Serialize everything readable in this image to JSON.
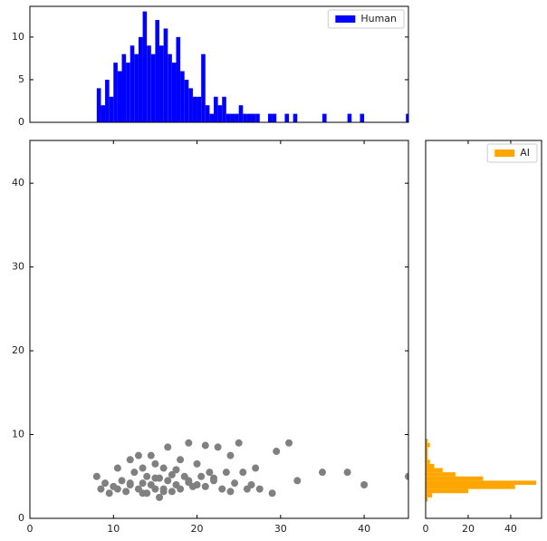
{
  "chart_data": [
    {
      "type": "histogram",
      "orientation": "vertical",
      "bins": [
        8.0,
        8.5,
        9.0,
        9.5,
        10.0,
        10.5,
        11.0,
        11.5,
        12.0,
        12.5,
        13.0,
        13.5,
        14.0,
        14.5,
        15.0,
        15.5,
        16.0,
        16.5,
        17.0,
        17.5,
        18.0,
        18.5,
        19.0,
        19.5,
        20.0,
        20.5,
        21.0,
        21.5,
        22.0,
        22.5,
        23.0,
        23.5,
        24.0,
        24.5,
        25.0,
        25.5,
        26.0,
        26.5,
        27.0,
        27.5,
        28.0,
        28.5,
        29.0,
        29.5,
        30.0,
        30.5,
        31.0,
        31.5,
        32.0,
        32.5,
        33.0,
        33.5,
        34.0,
        34.5,
        35.0,
        35.5,
        36.0,
        36.5,
        37.0,
        37.5,
        38.0,
        38.5,
        39.0,
        39.5,
        40.0,
        40.5,
        41.0,
        41.5,
        42.0,
        42.5,
        43.0,
        43.5,
        44.0,
        44.5,
        45.0,
        45.5
      ],
      "series": [
        {
          "name": "Human",
          "color": "#0000ff",
          "values": [
            4,
            2,
            5,
            3,
            7,
            6,
            8,
            7,
            9,
            8,
            10,
            13,
            9,
            8,
            12,
            9,
            11,
            8,
            7,
            10,
            6,
            5,
            4,
            3,
            3,
            8,
            2,
            1,
            3,
            2,
            3,
            1,
            1,
            1,
            2,
            1,
            1,
            1,
            1,
            0,
            0,
            1,
            1,
            0,
            0,
            1,
            0,
            1,
            0,
            0,
            0,
            0,
            0,
            0,
            1,
            0,
            0,
            0,
            0,
            0,
            1,
            0,
            0,
            1,
            0,
            0,
            0,
            0,
            0,
            0,
            0,
            0,
            0,
            0,
            1
          ]
        }
      ],
      "xlim": [
        0,
        45.3
      ],
      "ylim": [
        0,
        13.6
      ],
      "yticks": [
        0,
        5,
        10
      ],
      "legend": "upper right"
    },
    {
      "type": "scatter",
      "color": "#808080",
      "x": [
        8,
        8.5,
        9,
        9.5,
        10,
        10.5,
        11,
        11.5,
        12,
        12,
        12.5,
        13,
        13,
        13.5,
        13.5,
        14,
        14,
        14.5,
        14.5,
        15,
        15,
        15.5,
        15.5,
        16,
        16,
        16.5,
        16.5,
        17,
        17,
        17.5,
        18,
        18,
        18.5,
        19,
        19,
        19.5,
        20,
        20,
        20.5,
        21,
        21,
        21.5,
        22,
        22.5,
        23,
        23.5,
        24,
        24.5,
        25,
        25.5,
        26,
        26.5,
        27,
        27.5,
        29,
        29.5,
        31,
        32,
        35,
        38,
        40,
        45.3,
        10.5,
        12,
        13.5,
        15,
        16,
        17.5,
        19,
        22,
        24
      ],
      "y": [
        5,
        3.5,
        4.2,
        3,
        3.8,
        6,
        4.5,
        3.2,
        7,
        4,
        5.5,
        3.5,
        7.5,
        4.2,
        6,
        3,
        5,
        4,
        7.5,
        3.5,
        6.5,
        2.5,
        4.8,
        3.2,
        6,
        4.5,
        8.5,
        3.2,
        5.2,
        4,
        7,
        3.5,
        5,
        4.5,
        9,
        3.8,
        6.5,
        4,
        5,
        8.7,
        3.8,
        5.5,
        4.5,
        8.5,
        3.5,
        5.5,
        7.5,
        4.2,
        9,
        5.5,
        3.5,
        4,
        6,
        3.5,
        3,
        8,
        9,
        4.5,
        5.5,
        5.5,
        4,
        5,
        3.5,
        4.2,
        3,
        4.8,
        3.5,
        5.8,
        4.3,
        4.8,
        3.2
      ],
      "xlim": [
        0,
        45.3
      ],
      "ylim": [
        0,
        45.1
      ],
      "xticks": [
        0,
        10,
        20,
        30,
        40
      ],
      "yticks": [
        0,
        10,
        20,
        30,
        40
      ]
    },
    {
      "type": "histogram",
      "orientation": "horizontal",
      "bins": [
        2.0,
        2.5,
        3.0,
        3.5,
        4.0,
        4.5,
        5.0,
        5.5,
        6.0,
        6.5,
        7.0,
        7.5,
        8.0,
        8.5,
        9.0,
        9.5
      ],
      "series": [
        {
          "name": "AI",
          "color": "#ffa500",
          "values": [
            1,
            3,
            20,
            42,
            52,
            27,
            14,
            8,
            4,
            2,
            1,
            1,
            1,
            2,
            1
          ]
        }
      ],
      "xlim": [
        0,
        54.5
      ],
      "ylim": [
        0,
        45.1
      ],
      "xticks": [
        0,
        20,
        40
      ],
      "legend": "upper right"
    }
  ]
}
